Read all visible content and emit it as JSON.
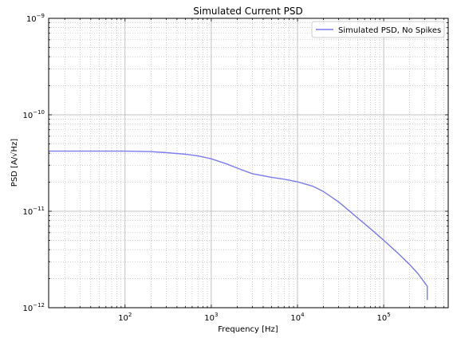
{
  "chart_data": {
    "type": "line",
    "title": "Simulated Current PSD",
    "xlabel": "Frequency [Hz]",
    "ylabel": "PSD [A/√Hz]",
    "xscale": "log",
    "yscale": "log",
    "xlim": [
      13,
      560000
    ],
    "ylim": [
      1e-12,
      1e-09
    ],
    "x_ticks": [
      {
        "value": 100,
        "base": "10",
        "exp": "2"
      },
      {
        "value": 1000,
        "base": "10",
        "exp": "3"
      },
      {
        "value": 10000,
        "base": "10",
        "exp": "4"
      },
      {
        "value": 100000,
        "base": "10",
        "exp": "5"
      }
    ],
    "y_ticks": [
      {
        "value": 1e-09,
        "base": "10",
        "exp": "−9"
      },
      {
        "value": 1e-10,
        "base": "10",
        "exp": "−10"
      },
      {
        "value": 1e-11,
        "base": "10",
        "exp": "−11"
      },
      {
        "value": 1e-12,
        "base": "10",
        "exp": "−12"
      }
    ],
    "grid": "major solid, minor dotted",
    "legend_position": "top-right",
    "series": [
      {
        "name": "Simulated PSD, No Spikes",
        "color": "#7b7bf0",
        "x": [
          13,
          20,
          50,
          100,
          200,
          300,
          500,
          700,
          1000,
          1500,
          2000,
          3000,
          5000,
          7000,
          10000,
          15000,
          20000,
          30000,
          50000,
          70000,
          100000,
          150000,
          200000,
          250000,
          320000,
          320000
        ],
        "y": [
          4.2e-11,
          4.2e-11,
          4.2e-11,
          4.2e-11,
          4.15e-11,
          4.05e-11,
          3.9e-11,
          3.75e-11,
          3.5e-11,
          3.1e-11,
          2.8e-11,
          2.45e-11,
          2.25e-11,
          2.15e-11,
          2.02e-11,
          1.82e-11,
          1.6e-11,
          1.25e-11,
          8.5e-12,
          6.6e-12,
          5e-12,
          3.6e-12,
          2.8e-12,
          2.25e-12,
          1.67e-12,
          1.2e-12
        ]
      }
    ]
  }
}
